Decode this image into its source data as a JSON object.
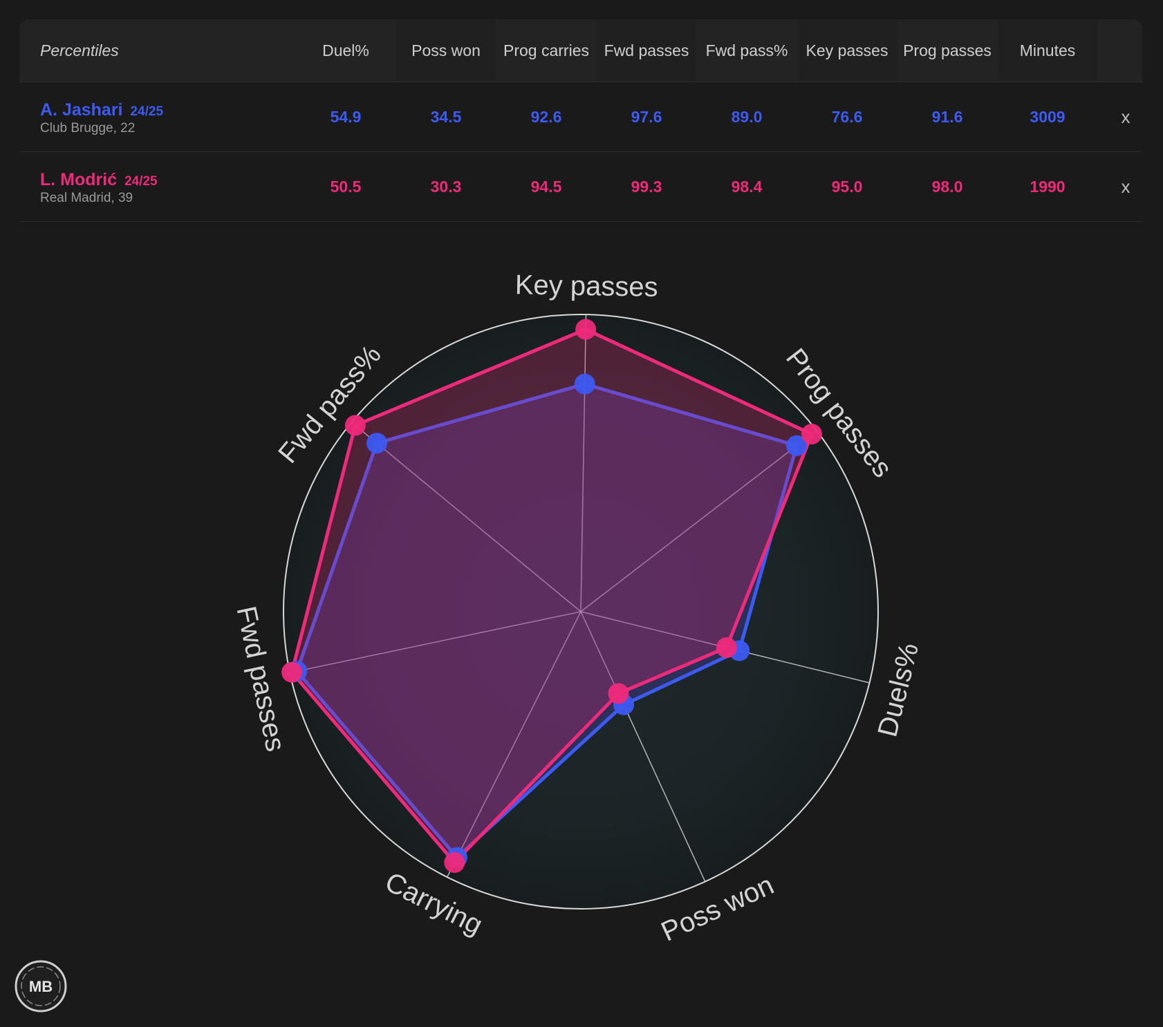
{
  "table": {
    "header_label": "Percentiles",
    "columns": [
      "Duel%",
      "Poss won",
      "Prog carries",
      "Fwd passes",
      "Fwd pass%",
      "Key passes",
      "Prog passes",
      "Minutes"
    ],
    "remove_label": "x",
    "players": [
      {
        "name": "A. Jashari",
        "season": "24/25",
        "meta": "Club Brugge, 22",
        "color": "#3d5af1",
        "values": [
          "54.9",
          "34.5",
          "92.6",
          "97.6",
          "89.0",
          "76.6",
          "91.6",
          "3009"
        ]
      },
      {
        "name": "L. Modrić",
        "season": "24/25",
        "meta": "Real Madrid, 39",
        "color": "#ee2a7b",
        "values": [
          "50.5",
          "30.3",
          "94.5",
          "99.3",
          "98.4",
          "95.0",
          "98.0",
          "1990"
        ]
      }
    ]
  },
  "chart_data": {
    "type": "radar",
    "axes": [
      "Key passes",
      "Prog passes",
      "Duels%",
      "Poss won",
      "Carrying",
      "Fwd passes",
      "Fwd pass%"
    ],
    "range": [
      0,
      100
    ],
    "series": [
      {
        "name": "A. Jashari",
        "color": "#3d5af1",
        "values": [
          76.6,
          91.6,
          54.9,
          34.5,
          92.6,
          97.6,
          89.0
        ]
      },
      {
        "name": "L. Modrić",
        "color": "#ee2a7b",
        "values": [
          95.0,
          98.0,
          50.5,
          30.3,
          94.5,
          99.3,
          98.4
        ]
      }
    ]
  },
  "logo_text": "MB"
}
